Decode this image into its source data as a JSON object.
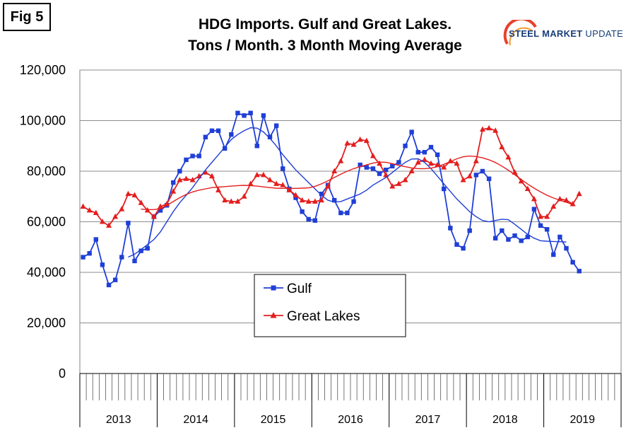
{
  "fig_label": "Fig 5",
  "title_lines": [
    "HDG Imports. Gulf and Great Lakes.",
    "Tons / Month. 3 Month Moving Average"
  ],
  "logo": {
    "bold": "STEEL MARKET",
    "light": "UPDATE",
    "color": "#1a3f7a",
    "accent": "#e8402a"
  },
  "chart_data": {
    "type": "line",
    "title": "HDG Imports. Gulf and Great Lakes. Tons / Month. 3 Month Moving Average",
    "ylim": [
      0,
      120000
    ],
    "y_ticks": [
      0,
      20000,
      40000,
      60000,
      80000,
      100000,
      120000
    ],
    "y_tick_labels": [
      "0",
      "20,000",
      "40,000",
      "60,000",
      "80,000",
      "100,000",
      "120,000"
    ],
    "years": [
      "2013",
      "2014",
      "2015",
      "2016",
      "2017",
      "2018",
      "2019"
    ],
    "months_per_year": 12,
    "grid": true,
    "legend_placement": "center-bottom",
    "series": [
      {
        "name": "Gulf",
        "color": "#1f3fd6",
        "marker": "square",
        "values": [
          46000,
          47500,
          53000,
          43000,
          35000,
          37000,
          46000,
          59500,
          44500,
          48500,
          49500,
          62000,
          64500,
          66500,
          75500,
          80000,
          84500,
          86000,
          86000,
          93500,
          96000,
          96000,
          89000,
          94500,
          103000,
          102000,
          103000,
          90000,
          102000,
          93500,
          98000,
          81000,
          73000,
          69500,
          64000,
          61000,
          60500,
          71000,
          74500,
          68500,
          63500,
          63500,
          68000,
          82500,
          81500,
          81000,
          79000,
          80500,
          82000,
          83500,
          90000,
          95500,
          87500,
          87500,
          89500,
          86500,
          73000,
          57500,
          51000,
          49500,
          56500,
          78500,
          80000,
          77000,
          53500,
          56500,
          53000,
          54500,
          52500,
          54000,
          65000,
          58500,
          57000,
          47000,
          54000,
          49500,
          44000,
          40500
        ]
      },
      {
        "name": "Great Lakes",
        "color": "#e41e1e",
        "marker": "triangle",
        "values": [
          66000,
          64500,
          63500,
          60000,
          58500,
          62000,
          65000,
          71000,
          70500,
          67500,
          64500,
          62000,
          66000,
          67000,
          72000,
          76500,
          77000,
          76500,
          78000,
          79500,
          78000,
          72500,
          68500,
          68000,
          68000,
          70000,
          75000,
          78500,
          78500,
          76500,
          75000,
          74500,
          72500,
          70500,
          68500,
          68000,
          68000,
          68500,
          74000,
          80000,
          84000,
          91000,
          90500,
          92500,
          92000,
          86000,
          83000,
          78500,
          74000,
          75000,
          76500,
          80000,
          83500,
          84500,
          83000,
          82500,
          81500,
          84000,
          83000,
          76500,
          78000,
          84000,
          96500,
          97000,
          96000,
          89500,
          85500,
          79500,
          76000,
          73000,
          69000,
          62000,
          62000,
          66000,
          69000,
          68500,
          67000,
          71000
        ]
      },
      {
        "name": "",
        "color": "#1f3fd6",
        "marker": "none",
        "x_start": 7,
        "values": [
          46000,
          47200,
          49000,
          51000,
          53000,
          56000,
          60000,
          64000,
          67500,
          70500,
          73500,
          77000,
          80500,
          83500,
          86500,
          89500,
          92500,
          94500,
          96000,
          97200,
          97000,
          95500,
          93000,
          90000,
          86500,
          83500,
          80500,
          78000,
          75500,
          73000,
          70500,
          68500,
          67800,
          68000,
          69000,
          70000,
          71000,
          72500,
          74500,
          76000,
          77500,
          79500,
          81500,
          83500,
          84800,
          84900,
          83500,
          81000,
          78000,
          75000,
          72000,
          69000,
          66500,
          64000,
          62000,
          60500,
          60000,
          60500,
          61000,
          60800,
          59000,
          57000,
          55000,
          53500,
          52500,
          52300,
          52200,
          52100,
          52000
        ]
      },
      {
        "name": "",
        "color": "#e41e1e",
        "marker": "none",
        "x_start": 9,
        "values": [
          65000,
          64800,
          64800,
          65200,
          66500,
          68000,
          69500,
          70800,
          71800,
          72500,
          73000,
          73500,
          73700,
          73900,
          74100,
          74300,
          74400,
          74300,
          74100,
          73800,
          73500,
          73300,
          73200,
          73200,
          73200,
          73300,
          73400,
          74000,
          75000,
          76200,
          77500,
          78800,
          80000,
          81000,
          81800,
          82500,
          83200,
          83600,
          83500,
          83000,
          82300,
          81800,
          81300,
          81000,
          81000,
          81200,
          81800,
          82700,
          83800,
          84900,
          85700,
          86000,
          85800,
          85300,
          84500,
          83400,
          82000,
          80400,
          78600,
          76700,
          74900,
          73300,
          71800,
          70500,
          69400,
          68500,
          67700,
          66800
        ]
      }
    ]
  }
}
